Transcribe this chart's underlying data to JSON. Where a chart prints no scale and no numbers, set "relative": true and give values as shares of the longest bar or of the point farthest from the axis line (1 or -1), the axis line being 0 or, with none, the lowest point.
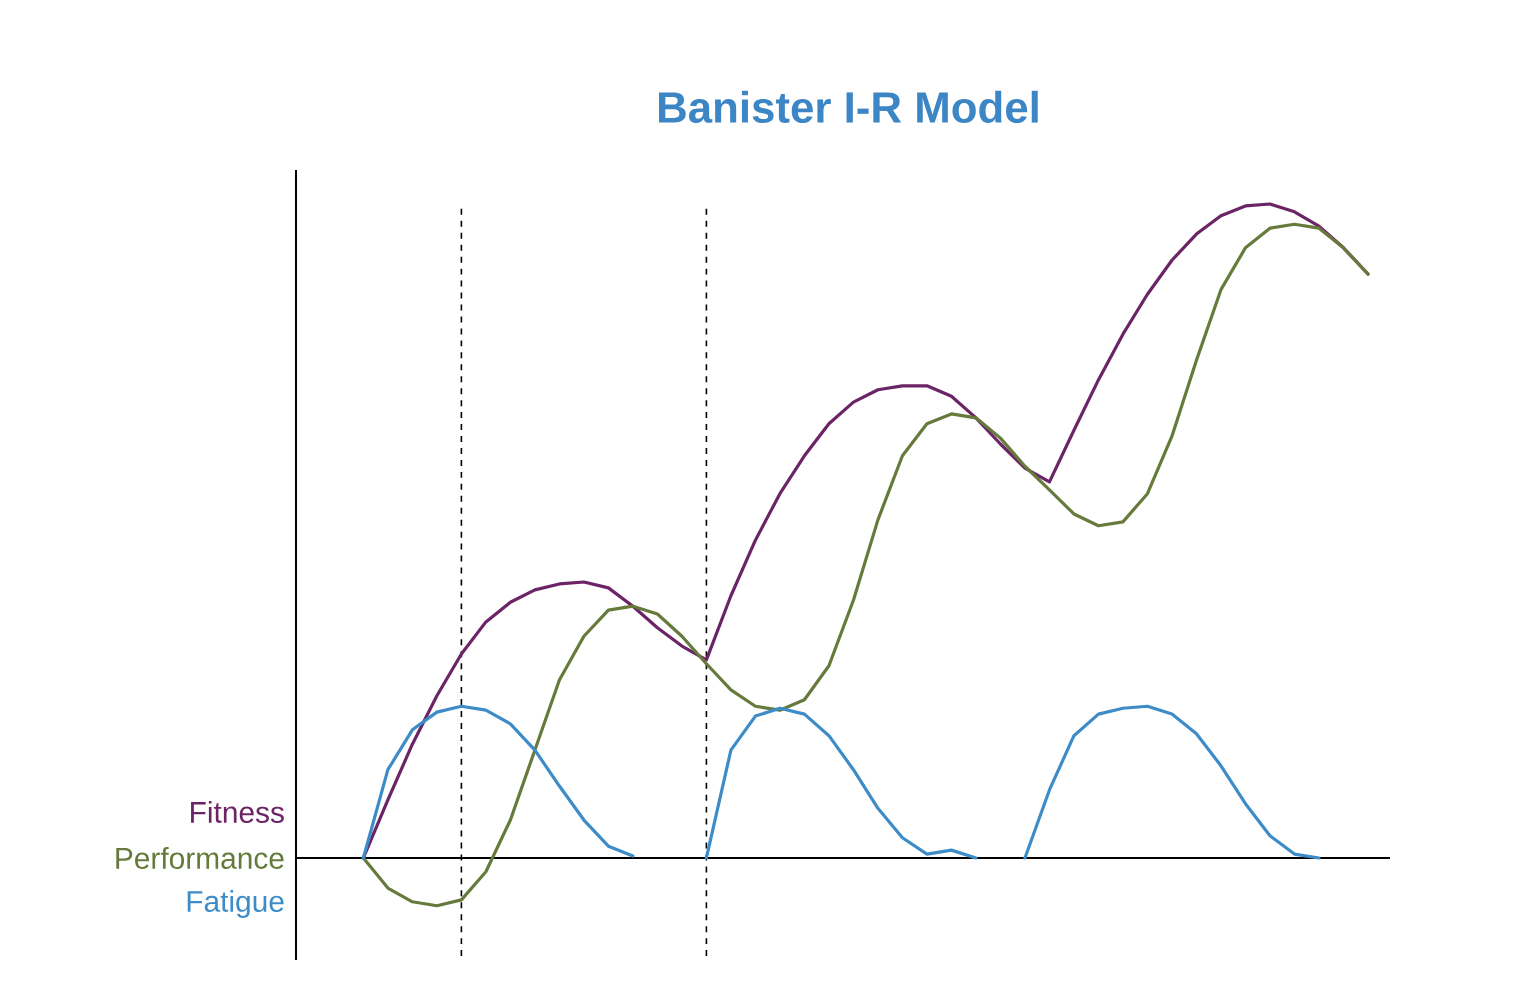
{
  "chart_data": {
    "type": "line",
    "title": "Banister I-R Model",
    "relative": true,
    "marker": "none",
    "line_style": "solid",
    "categories": [
      null,
      null,
      null,
      null,
      null,
      null,
      null,
      null,
      null,
      null,
      null,
      null,
      null,
      null,
      null,
      null,
      null,
      null,
      null,
      null,
      null,
      null,
      null,
      null,
      null,
      null,
      null,
      null,
      null,
      null,
      null,
      null,
      null,
      null,
      null,
      null,
      null,
      null,
      null,
      null,
      null,
      null
    ],
    "series": [
      {
        "name": "Fitness",
        "color": "#6b2466",
        "values": [
          0,
          0.089,
          0.174,
          0.248,
          0.312,
          0.361,
          0.391,
          0.41,
          0.419,
          0.422,
          0.413,
          0.385,
          0.352,
          0.324,
          0.303,
          0.401,
          0.486,
          0.557,
          0.615,
          0.664,
          0.697,
          0.716,
          0.722,
          0.722,
          0.706,
          0.673,
          0.633,
          0.596,
          0.575,
          0.654,
          0.731,
          0.801,
          0.862,
          0.914,
          0.954,
          0.982,
          0.997,
          1,
          0.988,
          0.966,
          0.933,
          0.893
        ]
      },
      {
        "name": "Performance",
        "color": "#667a3c",
        "values": [
          0,
          -0.046,
          -0.067,
          -0.073,
          -0.064,
          -0.021,
          0.058,
          0.165,
          0.272,
          0.339,
          0.379,
          0.385,
          0.373,
          0.339,
          0.297,
          0.257,
          0.232,
          0.226,
          0.242,
          0.294,
          0.394,
          0.517,
          0.615,
          0.664,
          0.679,
          0.673,
          0.642,
          0.599,
          0.563,
          0.526,
          0.508,
          0.514,
          0.557,
          0.645,
          0.761,
          0.869,
          0.933,
          0.963,
          0.969,
          0.963,
          0.933,
          0.893
        ]
      },
      {
        "name": "Fatigue",
        "color": "#3d8cc8",
        "values": [
          0,
          0.135,
          0.196,
          0.223,
          0.232,
          0.226,
          0.205,
          0.165,
          0.11,
          0.058,
          0.018,
          0.003,
          null,
          null,
          0,
          0.165,
          0.217,
          0.229,
          0.22,
          0.187,
          0.135,
          0.076,
          0.031,
          0.006,
          0.012,
          0,
          null,
          0,
          0.104,
          0.187,
          0.22,
          0.229,
          0.232,
          0.22,
          0.19,
          0.141,
          0.083,
          0.034,
          0.006,
          0,
          null,
          null
        ]
      }
    ]
  }
}
